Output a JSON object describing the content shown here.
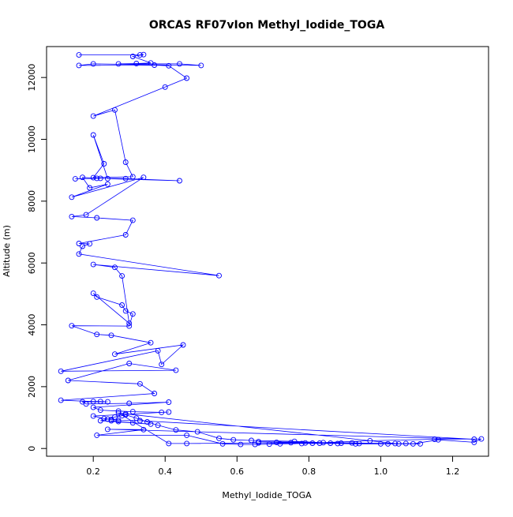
{
  "chart_data": {
    "type": "scatter",
    "title": "ORCAS RF07vIon Methyl_Iodide_TOGA",
    "xlabel": "Methyl_Iodide_TOGA",
    "ylabel": "Altitude (m)",
    "xlim": [
      0.07,
      1.3
    ],
    "ylim": [
      -250,
      13000
    ],
    "xticks": [
      0.2,
      0.4,
      0.6,
      0.8,
      1.0,
      1.2
    ],
    "xtick_labels": [
      "0.2",
      "0.4",
      "0.6",
      "0.8",
      "1.0",
      "1.2"
    ],
    "yticks": [
      0,
      2000,
      4000,
      6000,
      8000,
      10000,
      12000
    ],
    "ytick_labels": [
      "0",
      "2000",
      "4000",
      "6000",
      "8000",
      "10000",
      "12000"
    ],
    "grid": false,
    "line_color": "#0000ff",
    "marker": "open-circle",
    "series": [
      {
        "points": [
          [
            0.16,
            12730
          ],
          [
            0.33,
            12730
          ],
          [
            0.34,
            12740
          ],
          [
            0.31,
            12680
          ],
          [
            0.36,
            12470
          ],
          [
            0.32,
            12450
          ],
          [
            0.27,
            12440
          ],
          [
            0.44,
            12440
          ],
          [
            0.5,
            12390
          ],
          [
            0.2,
            12440
          ],
          [
            0.16,
            12390
          ],
          [
            0.37,
            12400
          ],
          [
            0.41,
            12380
          ],
          [
            0.46,
            11980
          ],
          [
            0.4,
            11690
          ],
          [
            0.2,
            10750
          ],
          [
            0.26,
            10950
          ],
          [
            0.29,
            9260
          ],
          [
            0.31,
            8790
          ],
          [
            0.2,
            8760
          ],
          [
            0.23,
            9210
          ],
          [
            0.2,
            10140
          ],
          [
            0.24,
            8730
          ],
          [
            0.44,
            8660
          ],
          [
            0.29,
            8730
          ],
          [
            0.22,
            8740
          ],
          [
            0.15,
            8720
          ],
          [
            0.21,
            8740
          ],
          [
            0.17,
            8770
          ],
          [
            0.19,
            8430
          ],
          [
            0.24,
            8550
          ],
          [
            0.14,
            8130
          ],
          [
            0.34,
            8770
          ],
          [
            0.18,
            7560
          ],
          [
            0.14,
            7500
          ],
          [
            0.21,
            7460
          ],
          [
            0.31,
            7380
          ],
          [
            0.29,
            6910
          ],
          [
            0.16,
            6630
          ],
          [
            0.19,
            6620
          ],
          [
            0.17,
            6540
          ],
          [
            0.16,
            6290
          ],
          [
            0.55,
            5590
          ],
          [
            0.2,
            5950
          ],
          [
            0.26,
            5860
          ],
          [
            0.28,
            5580
          ],
          [
            0.3,
            4050
          ],
          [
            0.2,
            5020
          ],
          [
            0.21,
            4900
          ],
          [
            0.28,
            4640
          ],
          [
            0.29,
            4450
          ],
          [
            0.31,
            4350
          ],
          [
            0.3,
            3960
          ],
          [
            0.14,
            3970
          ],
          [
            0.21,
            3690
          ],
          [
            0.25,
            3660
          ],
          [
            0.36,
            3420
          ],
          [
            0.26,
            3050
          ],
          [
            0.45,
            3350
          ],
          [
            0.39,
            2720
          ],
          [
            0.38,
            3160
          ],
          [
            0.11,
            2500
          ],
          [
            0.43,
            2530
          ],
          [
            0.3,
            2750
          ],
          [
            0.13,
            2200
          ],
          [
            0.33,
            2090
          ],
          [
            0.37,
            1780
          ],
          [
            0.11,
            1560
          ],
          [
            0.2,
            1520
          ],
          [
            0.22,
            1520
          ],
          [
            0.24,
            1510
          ],
          [
            0.17,
            1510
          ],
          [
            0.18,
            1440
          ],
          [
            0.3,
            1460
          ],
          [
            0.41,
            1500
          ],
          [
            0.2,
            1330
          ],
          [
            0.22,
            1240
          ],
          [
            0.27,
            1210
          ],
          [
            0.31,
            1190
          ],
          [
            0.39,
            1170
          ],
          [
            0.41,
            1180
          ],
          [
            0.2,
            1050
          ],
          [
            0.23,
            970
          ],
          [
            0.25,
            940
          ],
          [
            0.27,
            910
          ],
          [
            0.33,
            900
          ],
          [
            1.26,
            300
          ],
          [
            0.24,
            620
          ],
          [
            0.34,
            610
          ],
          [
            0.21,
            430
          ],
          [
            0.46,
            430
          ],
          [
            0.56,
            150
          ],
          [
            0.61,
            130
          ],
          [
            0.65,
            130
          ],
          [
            0.69,
            140
          ],
          [
            0.72,
            150
          ],
          [
            0.78,
            160
          ],
          [
            0.86,
            170
          ],
          [
            0.92,
            180
          ],
          [
            1.02,
            150
          ],
          [
            1.05,
            150
          ],
          [
            1.09,
            150
          ],
          [
            1.16,
            280
          ],
          [
            1.26,
            200
          ],
          [
            1.28,
            310
          ],
          [
            1.15,
            300
          ],
          [
            0.97,
            250
          ],
          [
            0.84,
            190
          ],
          [
            0.76,
            230
          ],
          [
            0.64,
            260
          ],
          [
            0.59,
            280
          ],
          [
            0.55,
            330
          ],
          [
            0.49,
            540
          ],
          [
            0.43,
            600
          ],
          [
            0.38,
            750
          ],
          [
            0.35,
            860
          ],
          [
            0.32,
            980
          ],
          [
            0.29,
            1090
          ],
          [
            0.27,
            1150
          ],
          [
            0.41,
            160
          ],
          [
            0.46,
            160
          ],
          [
            0.66,
            180
          ],
          [
            0.81,
            170
          ],
          [
            0.88,
            160
          ],
          [
            0.93,
            150
          ],
          [
            1.0,
            150
          ],
          [
            1.07,
            160
          ],
          [
            1.11,
            150
          ],
          [
            0.66,
            220
          ],
          [
            0.71,
            200
          ],
          [
            0.75,
            190
          ],
          [
            0.79,
            180
          ],
          [
            0.83,
            170
          ],
          [
            0.89,
            170
          ],
          [
            0.94,
            160
          ],
          [
            1.04,
            160
          ],
          [
            0.29,
            1120
          ],
          [
            0.28,
            1060
          ],
          [
            0.26,
            1020
          ],
          [
            0.24,
            950
          ],
          [
            0.22,
            900
          ],
          [
            0.36,
            790
          ],
          [
            0.31,
            830
          ],
          [
            0.27,
            870
          ],
          [
            0.25,
            900
          ]
        ]
      }
    ]
  }
}
